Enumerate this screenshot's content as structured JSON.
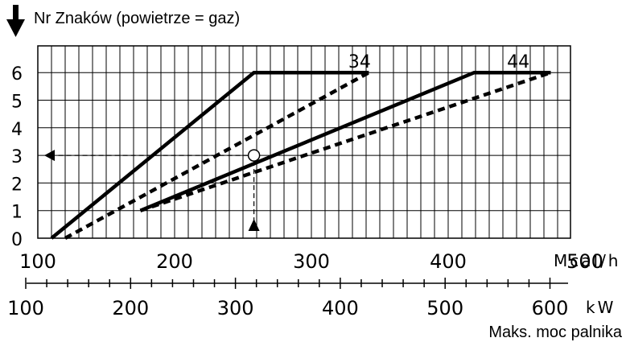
{
  "chart_data": {
    "type": "line",
    "title": "Nr Znaków (powietrze = gaz)",
    "xlabel": "Maks. moc palnika",
    "x_unit_primary": "Mcal/h",
    "x_unit_secondary": "kW",
    "xlim": [
      100,
      570
    ],
    "ylim": [
      0,
      7
    ],
    "grid": true,
    "y_ticks": [
      0,
      1,
      2,
      3,
      4,
      5,
      6
    ],
    "x_ticks_primary": [
      100,
      200,
      300,
      400,
      500
    ],
    "x_ticks_secondary": [
      100,
      200,
      300,
      400,
      500,
      600
    ],
    "series": [
      {
        "name": "34",
        "style": "solid",
        "x": [
          110,
          258,
          342
        ],
        "y": [
          0,
          6,
          6
        ]
      },
      {
        "name": "34",
        "style": "dashed",
        "x": [
          120,
          342
        ],
        "y": [
          0,
          6
        ]
      },
      {
        "name": "44",
        "style": "solid",
        "x": [
          175,
          419,
          475
        ],
        "y": [
          1,
          6,
          6
        ]
      },
      {
        "name": "44",
        "style": "dashed",
        "x": [
          175,
          475
        ],
        "y": [
          1,
          6
        ]
      }
    ],
    "annotations": {
      "example_point": {
        "x": 258,
        "y": 3
      },
      "series_labels": [
        {
          "text": "34",
          "x": 327,
          "y": 6
        },
        {
          "text": "44",
          "x": 443,
          "y": 6
        }
      ]
    }
  }
}
